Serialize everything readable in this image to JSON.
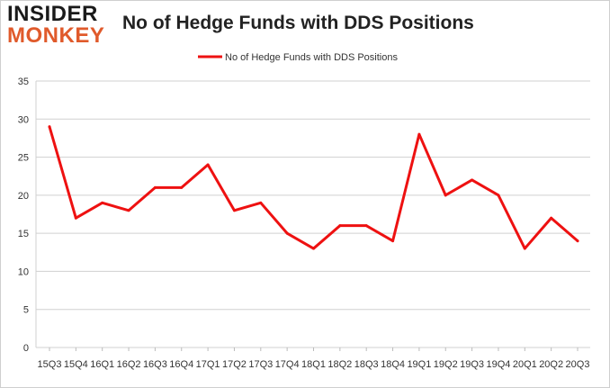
{
  "logo": {
    "line1": "INSIDER",
    "line2": "MONKEY"
  },
  "chart_data": {
    "type": "line",
    "title": "No of Hedge Funds with DDS Positions",
    "xlabel": "",
    "ylabel": "",
    "ylim": [
      0,
      35
    ],
    "yticks": [
      0,
      5,
      10,
      15,
      20,
      25,
      30,
      35
    ],
    "grid": true,
    "legend": "top-center",
    "categories": [
      "15Q3",
      "15Q4",
      "16Q1",
      "16Q2",
      "16Q3",
      "16Q4",
      "17Q1",
      "17Q2",
      "17Q3",
      "17Q4",
      "18Q1",
      "18Q2",
      "18Q3",
      "18Q4",
      "19Q1",
      "19Q2",
      "19Q3",
      "19Q4",
      "20Q1",
      "20Q2",
      "20Q3"
    ],
    "series": [
      {
        "name": "No of Hedge Funds with DDS Positions",
        "color": "#ee1111",
        "values": [
          29,
          17,
          19,
          18,
          21,
          21,
          24,
          18,
          19,
          15,
          13,
          16,
          16,
          14,
          28,
          20,
          22,
          20,
          13,
          17,
          14
        ]
      }
    ]
  }
}
